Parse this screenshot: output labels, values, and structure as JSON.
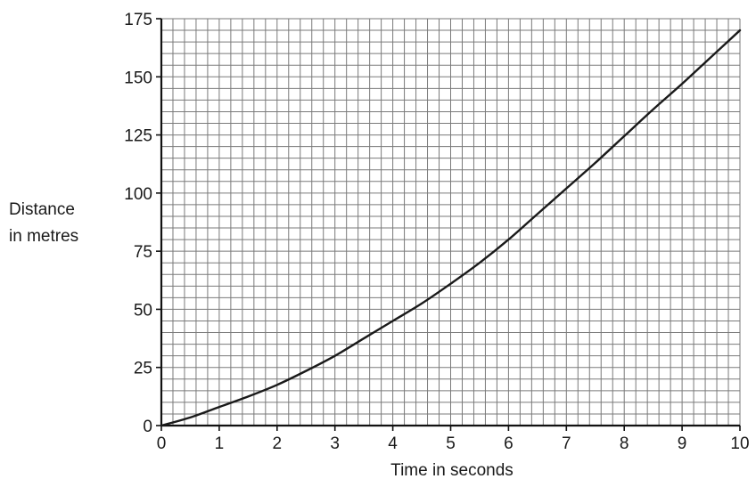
{
  "chart_data": {
    "type": "line",
    "title": "",
    "xlabel": "Time in seconds",
    "ylabel_lines": [
      "Distance",
      "in metres"
    ],
    "xlim": [
      0,
      10
    ],
    "ylim": [
      0,
      175
    ],
    "x_ticks": [
      0,
      1,
      2,
      3,
      4,
      5,
      6,
      7,
      8,
      9,
      10
    ],
    "y_ticks": [
      0,
      25,
      50,
      75,
      100,
      125,
      150,
      175
    ],
    "x_minor_step": 0.2,
    "y_minor_step": 5,
    "grid": true,
    "series": [
      {
        "x": [
          0,
          0.5,
          1,
          1.5,
          2,
          2.5,
          3,
          3.5,
          4,
          4.5,
          5,
          5.5,
          6,
          6.5,
          7,
          7.5,
          8,
          8.5,
          9,
          9.5,
          10
        ],
        "y": [
          0,
          3.5,
          8,
          12.5,
          17.5,
          23.5,
          30,
          37.5,
          45,
          52.5,
          61,
          70,
          80,
          91,
          102,
          113,
          124.5,
          136,
          147,
          158.5,
          170
        ]
      }
    ],
    "colors": {
      "line": "#1a1a1a",
      "grid": "#7a7a7a",
      "axis": "#111111"
    }
  }
}
